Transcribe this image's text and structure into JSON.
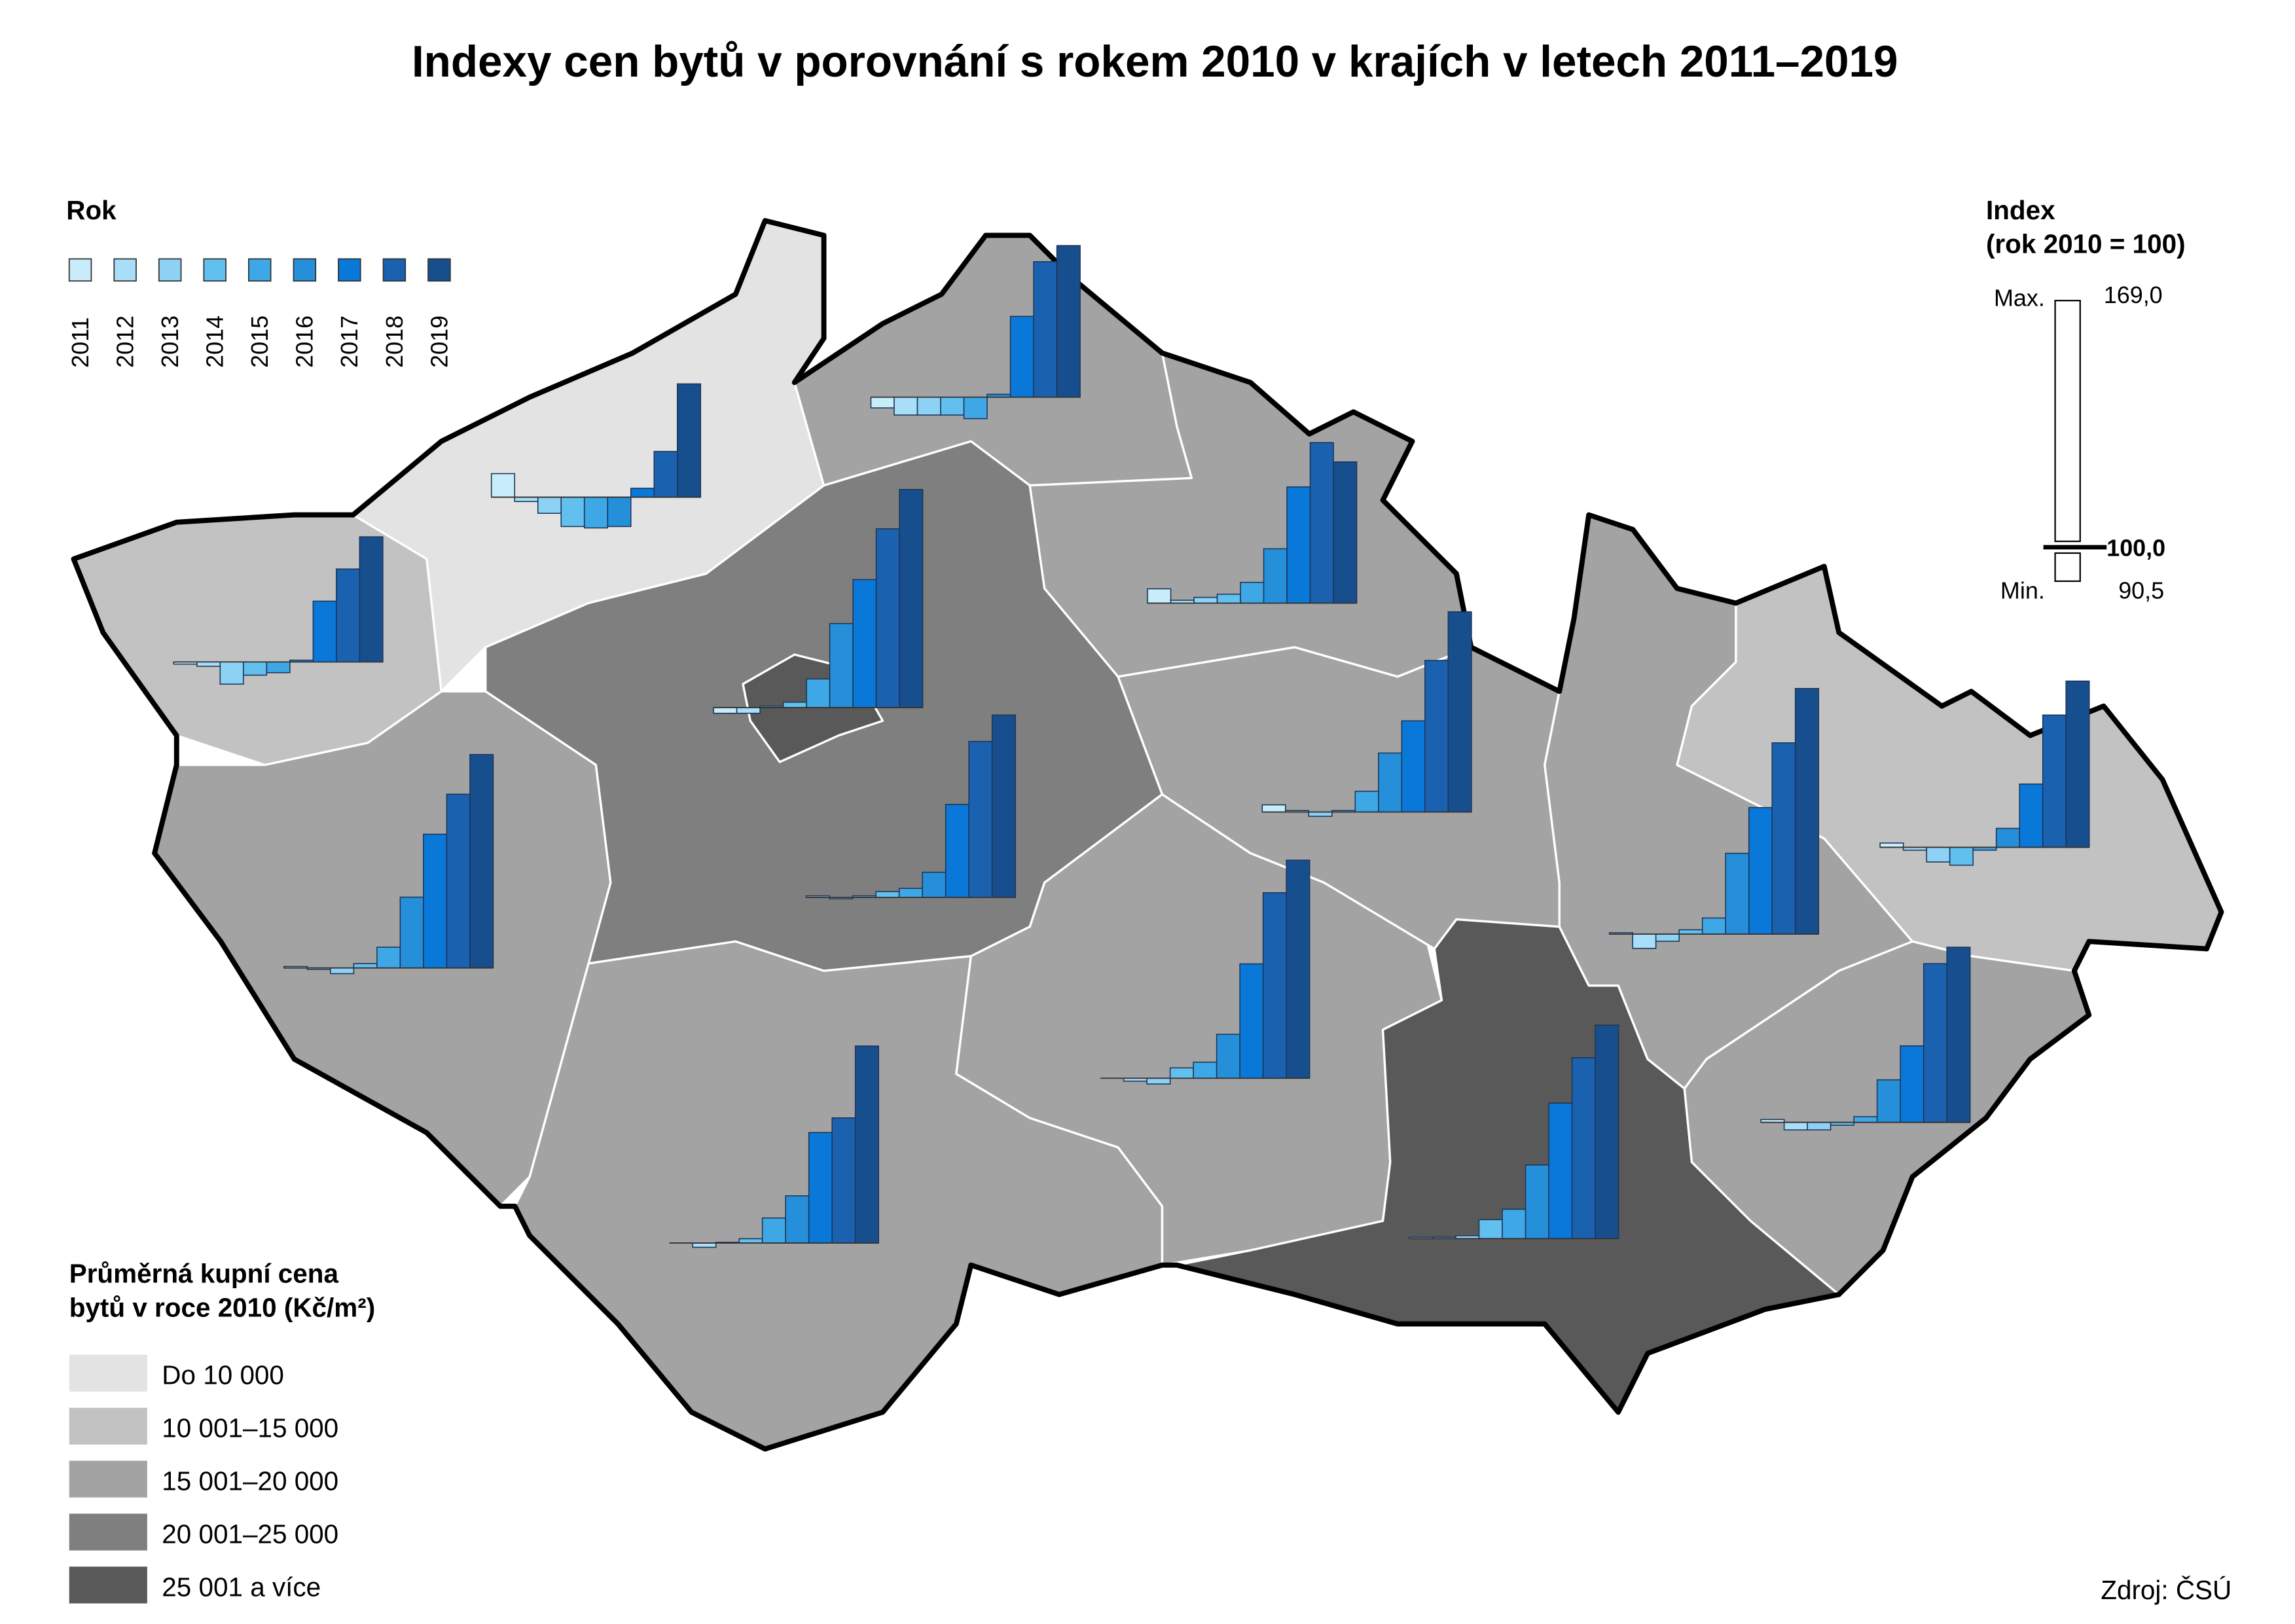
{
  "chart_data": {
    "type": "bar",
    "title": "Indexy cen bytů v porovnání s rokem 2010 v krajích v letech 2011–2019",
    "legend_title": "Rok",
    "categories": [
      "2011",
      "2012",
      "2013",
      "2014",
      "2015",
      "2016",
      "2017",
      "2018",
      "2019"
    ],
    "colors": [
      "#c8ecfa",
      "#a8def7",
      "#8dd2f5",
      "#62c0ef",
      "#3ea8e6",
      "#2590d9",
      "#0a78d8",
      "#1a62b0",
      "#174f8e"
    ],
    "groups": [
      {
        "fill": "#c2c2c2",
        "values": [
          99.4,
          98.8,
          93.8,
          96.3,
          97,
          100.5,
          117,
          126,
          135
        ]
      },
      {
        "fill": "#e3e3e3",
        "values": [
          106.6,
          98.8,
          95.5,
          91.8,
          91.4,
          91.8,
          102.5,
          112.8,
          131.7
        ]
      },
      {
        "fill": "#a3a3a3",
        "values": [
          97,
          95,
          95,
          95,
          94,
          100.8,
          122.6,
          137.9,
          142.4
        ]
      },
      {
        "fill": "#7f7f7f",
        "values": [
          100.4,
          99.6,
          100.4,
          101.6,
          102.5,
          107,
          126,
          143.6,
          151
        ]
      },
      {
        "fill": "#595959",
        "values": [
          98.4,
          98.4,
          100.4,
          101.5,
          108,
          123.5,
          135.8,
          150,
          161
        ]
      },
      {
        "fill": "#a3a3a3",
        "values": [
          100.4,
          99.6,
          98.4,
          101.2,
          105.8,
          119.8,
          137.4,
          148.6,
          159.7
        ]
      },
      {
        "fill": "#a3a3a3",
        "values": [
          100,
          98.8,
          100.2,
          101.2,
          107,
          113.2,
          130.9,
          135,
          155.1
        ]
      },
      {
        "fill": "#a3a3a3",
        "values": [
          100,
          99.2,
          98.4,
          102.9,
          104.5,
          112.3,
          132,
          151.9,
          161
        ]
      },
      {
        "fill": "#a3a3a3",
        "values": [
          104,
          100.8,
          101.6,
          102.5,
          105.8,
          115.2,
          132.5,
          144.9,
          139.5
        ]
      },
      {
        "fill": "#a3a3a3",
        "values": [
          102,
          100.4,
          98.8,
          100.4,
          105.8,
          116.5,
          125.5,
          142.4,
          156
        ]
      },
      {
        "fill": "#595959",
        "values": [
          100.4,
          100.4,
          100.8,
          105.3,
          108.2,
          120.6,
          137.9,
          150.6,
          159.7
        ]
      },
      {
        "fill": "#a3a3a3",
        "values": [
          100.4,
          96,
          98,
          101.2,
          104.5,
          122.6,
          135.4,
          153.5,
          168.7
        ]
      },
      {
        "fill": "#c2c2c2",
        "values": [
          101.2,
          99.2,
          95.9,
          95,
          99.2,
          105.3,
          117.7,
          137,
          146.5
        ]
      },
      {
        "fill": "#a3a3a3",
        "values": [
          100.8,
          97.9,
          97.9,
          99.2,
          101.6,
          111.9,
          121.4,
          144.4,
          149
        ]
      }
    ],
    "index_legend": {
      "title": "Index",
      "subtitle": "(rok 2010 = 100)",
      "max_label": "Max.",
      "min_label": "Min.",
      "max": {
        "value": 169,
        "label": "169,0"
      },
      "base": {
        "value": 100,
        "label": "100,0"
      },
      "min": {
        "value": 90.5,
        "label": "90,5"
      }
    },
    "price_legend": {
      "title": [
        "Průměrná kupní cena",
        "bytů v roce 2010 (Kč/m²)"
      ],
      "classes": [
        {
          "label": "Do 10 000",
          "color": "#e3e3e3"
        },
        {
          "label": "10 001–15 000",
          "color": "#c2c2c2"
        },
        {
          "label": "15 001–20 000",
          "color": "#a3a3a3"
        },
        {
          "label": "20 001–25 000",
          "color": "#7f7f7f"
        },
        {
          "label": "25 001 a více",
          "color": "#595959"
        }
      ]
    },
    "source": "Zdroj: ČSÚ"
  }
}
